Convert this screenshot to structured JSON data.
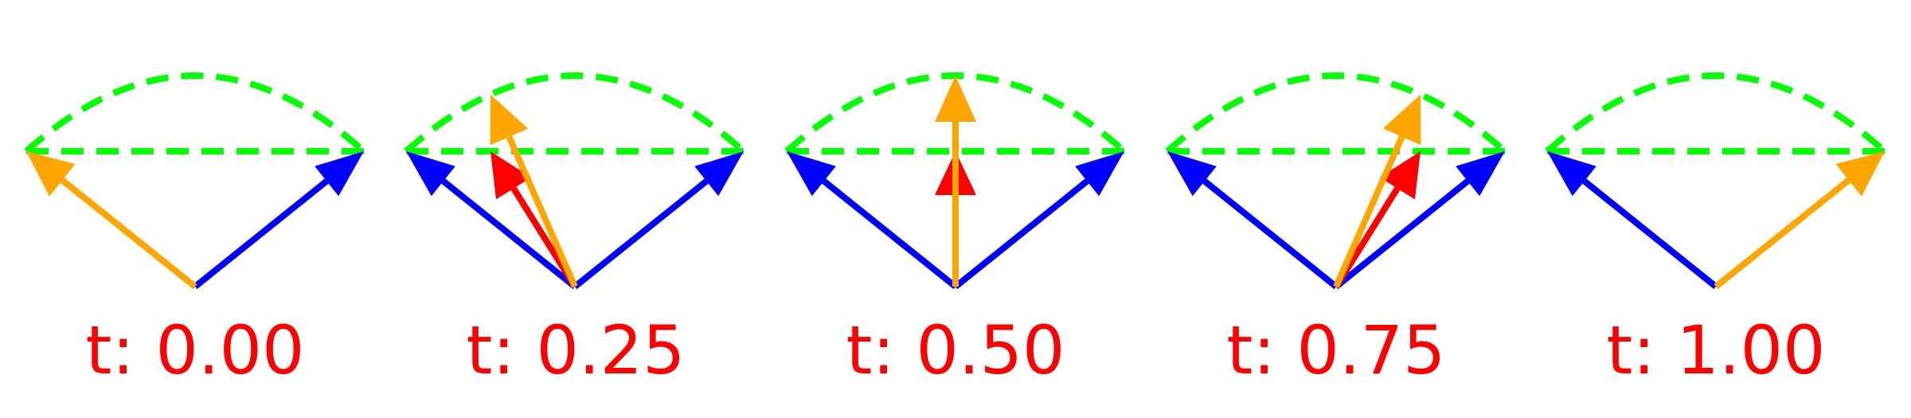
{
  "colors": {
    "arc": "#00ff00",
    "chord": "#00ff00",
    "endpoint_vectors": "#0000ff",
    "slerp_vector": "#ffa500",
    "lerp_vector": "#ff0000",
    "label": "#ff0000"
  },
  "panels": [
    {
      "t": 0.0,
      "label": "t: 0.00"
    },
    {
      "t": 0.25,
      "label": "t: 0.25"
    },
    {
      "t": 0.5,
      "label": "t: 0.50"
    },
    {
      "t": 0.75,
      "label": "t: 0.75"
    },
    {
      "t": 1.0,
      "label": "t: 1.00"
    }
  ]
}
